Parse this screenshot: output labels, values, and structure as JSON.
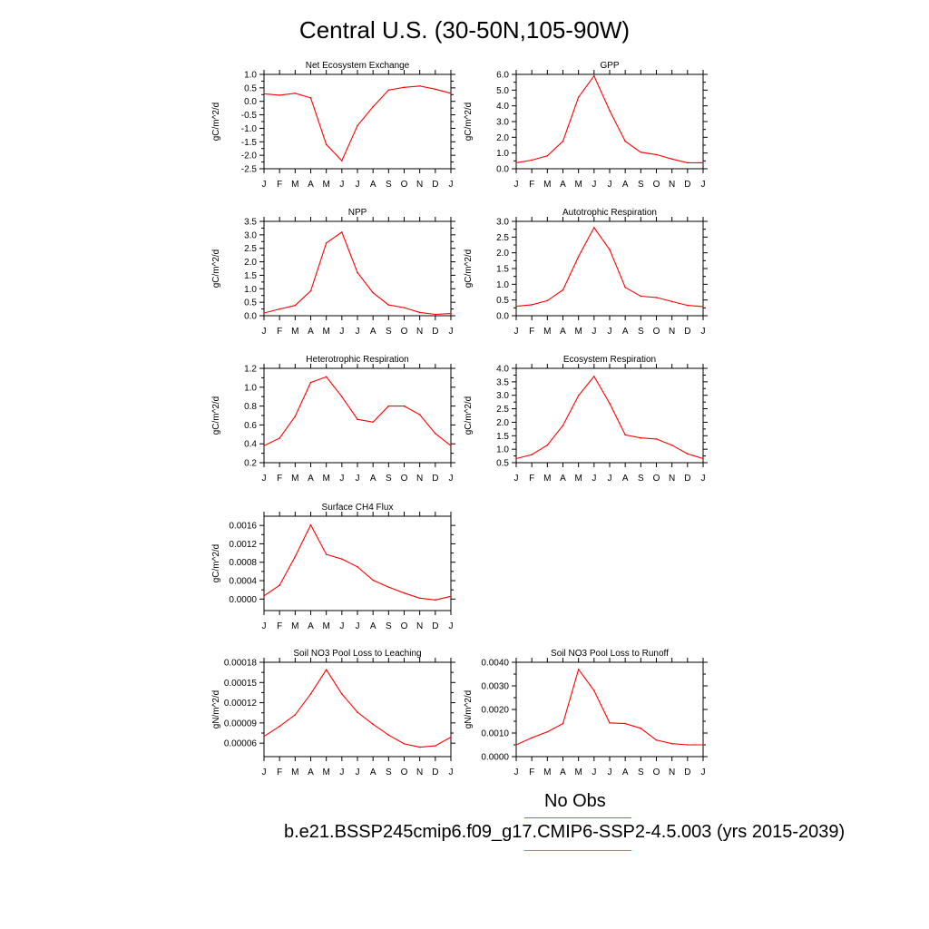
{
  "title": "Central U.S. (30-50N,105-90W)",
  "legend": {
    "obs_label": "No Obs",
    "obs_color": "#6666ee",
    "case_label": "b.e21.BSSP245cmip6.f09_g17.CMIP6-SSP2-4.5.003 (yrs 2015-2039)",
    "case_color": "#ee6666"
  },
  "line_color": "#ff0000",
  "chart_data": [
    {
      "type": "line",
      "title": "Net Ecosystem Exchange",
      "ylabel": "gC/m^2/d",
      "categories": [
        "J",
        "F",
        "M",
        "A",
        "M",
        "J",
        "J",
        "A",
        "S",
        "O",
        "N",
        "D",
        "J"
      ],
      "values": [
        0.28,
        0.23,
        0.3,
        0.13,
        -1.6,
        -2.2,
        -0.9,
        -0.2,
        0.42,
        0.52,
        0.57,
        0.45,
        0.3
      ],
      "ylim": [
        -2.5,
        1.0
      ],
      "yticks": [
        "1.0",
        "0.5",
        "0.0",
        "-0.5",
        "-1.0",
        "-1.5",
        "-2.0",
        "-2.5"
      ]
    },
    {
      "type": "line",
      "title": "GPP",
      "ylabel": "gC/m^2/d",
      "categories": [
        "J",
        "F",
        "M",
        "A",
        "M",
        "J",
        "J",
        "A",
        "S",
        "O",
        "N",
        "D",
        "J"
      ],
      "values": [
        0.38,
        0.55,
        0.82,
        1.75,
        4.55,
        5.9,
        3.7,
        1.75,
        1.05,
        0.9,
        0.62,
        0.38,
        0.38
      ],
      "ylim": [
        0.0,
        6.0
      ],
      "yticks": [
        "6.0",
        "5.0",
        "4.0",
        "3.0",
        "2.0",
        "1.0",
        "0.0"
      ]
    },
    {
      "type": "line",
      "title": "NPP",
      "ylabel": "gC/m^2/d",
      "categories": [
        "J",
        "F",
        "M",
        "A",
        "M",
        "J",
        "J",
        "A",
        "S",
        "O",
        "N",
        "D",
        "J"
      ],
      "values": [
        0.1,
        0.25,
        0.38,
        0.92,
        2.7,
        3.1,
        1.6,
        0.85,
        0.4,
        0.3,
        0.12,
        0.05,
        0.08
      ],
      "ylim": [
        0.0,
        3.5
      ],
      "yticks": [
        "3.5",
        "3.0",
        "2.5",
        "2.0",
        "1.5",
        "1.0",
        "0.5",
        "0.0"
      ]
    },
    {
      "type": "line",
      "title": "Autotrophic Respiration",
      "ylabel": "gC/m^2/d",
      "categories": [
        "J",
        "F",
        "M",
        "A",
        "M",
        "J",
        "J",
        "A",
        "S",
        "O",
        "N",
        "D",
        "J"
      ],
      "values": [
        0.3,
        0.35,
        0.48,
        0.82,
        1.88,
        2.8,
        2.1,
        0.9,
        0.62,
        0.58,
        0.45,
        0.33,
        0.29
      ],
      "ylim": [
        0.0,
        3.0
      ],
      "yticks": [
        "3.0",
        "2.5",
        "2.0",
        "1.5",
        "1.0",
        "0.5",
        "0.0"
      ]
    },
    {
      "type": "line",
      "title": "Heterotrophic Respiration",
      "ylabel": "gC/m^2/d",
      "categories": [
        "J",
        "F",
        "M",
        "A",
        "M",
        "J",
        "J",
        "A",
        "S",
        "O",
        "N",
        "D",
        "J"
      ],
      "values": [
        0.38,
        0.46,
        0.69,
        1.05,
        1.11,
        0.9,
        0.66,
        0.63,
        0.8,
        0.8,
        0.71,
        0.51,
        0.38
      ],
      "ylim": [
        0.2,
        1.2
      ],
      "yticks": [
        "1.2",
        "1.0",
        "0.8",
        "0.6",
        "0.4",
        "0.2"
      ]
    },
    {
      "type": "line",
      "title": "Ecosystem Respiration",
      "ylabel": "gC/m^2/d",
      "categories": [
        "J",
        "F",
        "M",
        "A",
        "M",
        "J",
        "J",
        "A",
        "S",
        "O",
        "N",
        "D",
        "J"
      ],
      "values": [
        0.65,
        0.8,
        1.15,
        1.88,
        2.99,
        3.7,
        2.7,
        1.53,
        1.42,
        1.38,
        1.15,
        0.83,
        0.65
      ],
      "ylim": [
        0.5,
        4.0
      ],
      "yticks": [
        "4.0",
        "3.5",
        "3.0",
        "2.5",
        "2.0",
        "1.5",
        "1.0",
        "0.5"
      ]
    },
    {
      "type": "line",
      "title": "Surface CH4 Flux",
      "ylabel": "gC/m^2/d",
      "categories": [
        "J",
        "F",
        "M",
        "A",
        "M",
        "J",
        "J",
        "A",
        "S",
        "O",
        "N",
        "D",
        "J"
      ],
      "values": [
        7e-05,
        0.0003,
        0.00092,
        0.00161,
        0.00097,
        0.00087,
        0.0007,
        0.00041,
        0.00026,
        0.00013,
        2e-05,
        -2e-05,
        6e-05
      ],
      "ylim": [
        -0.00025,
        0.0018
      ],
      "yticks": [
        "0.0016",
        "0.0012",
        "0.0008",
        "0.0004",
        "0.0000"
      ],
      "ytick_values": [
        0.0016,
        0.0012,
        0.0008,
        0.0004,
        0.0
      ]
    },
    {
      "type": "line",
      "title": "Soil NO3 Pool Loss to Leaching",
      "ylabel": "gN/m^2/d",
      "categories": [
        "J",
        "F",
        "M",
        "A",
        "M",
        "J",
        "J",
        "A",
        "S",
        "O",
        "N",
        "D",
        "J"
      ],
      "values": [
        7e-05,
        8.5e-05,
        0.000102,
        0.000133,
        0.000169,
        0.000133,
        0.000106,
        8.8e-05,
        7.2e-05,
        5.9e-05,
        5.4e-05,
        5.6e-05,
        6.9e-05
      ],
      "ylim": [
        4e-05,
        0.00018
      ],
      "yticks": [
        "0.00018",
        "0.00015",
        "0.00012",
        "0.00009",
        "0.00006"
      ],
      "ytick_values": [
        0.00018,
        0.00015,
        0.00012,
        9e-05,
        6e-05
      ]
    },
    {
      "type": "line",
      "title": "Soil NO3 Pool Loss to Runoff",
      "ylabel": "gN/m^2/d",
      "categories": [
        "J",
        "F",
        "M",
        "A",
        "M",
        "J",
        "J",
        "A",
        "S",
        "O",
        "N",
        "D",
        "J"
      ],
      "values": [
        0.0005,
        0.0008,
        0.00105,
        0.0014,
        0.0037,
        0.0028,
        0.00143,
        0.0014,
        0.0012,
        0.0007,
        0.00055,
        0.0005,
        0.0005
      ],
      "ylim": [
        0.0,
        0.004
      ],
      "yticks": [
        "0.0040",
        "0.0030",
        "0.0020",
        "0.0010",
        "0.0000"
      ],
      "ytick_values": [
        0.004,
        0.003,
        0.002,
        0.001,
        0.0
      ]
    }
  ]
}
